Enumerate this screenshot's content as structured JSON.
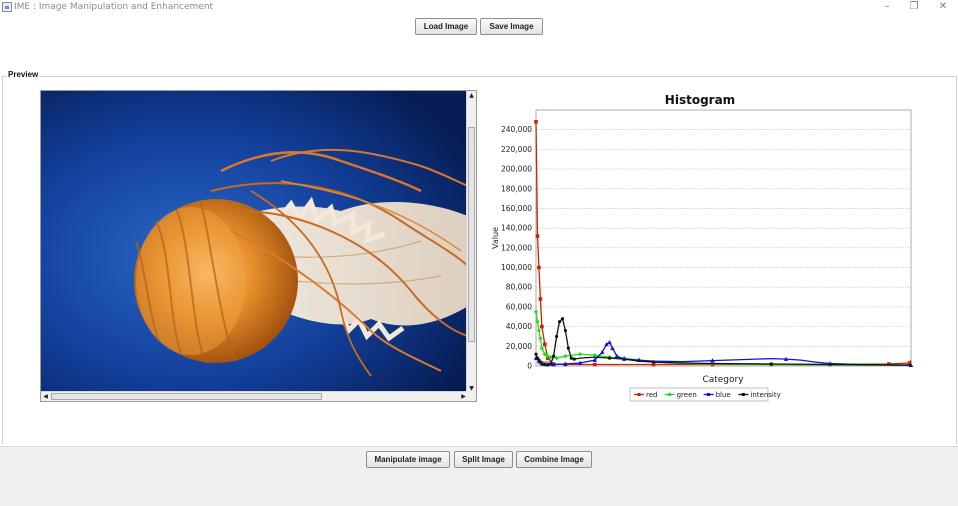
{
  "window": {
    "title": "IME : Image Manipulation and Enhancement",
    "minimize_glyph": "–",
    "restore_glyph": "❐",
    "close_glyph": "✕"
  },
  "toolbar": {
    "load_label": "Load Image",
    "save_label": "Save Image"
  },
  "preview": {
    "label": "Preview",
    "image_subject": "jellyfish on deep blue background"
  },
  "bottom_toolbar": {
    "manipulate_label": "Manipulate image",
    "split_label": "Split Image",
    "combine_label": "Combine Image"
  },
  "icons": {
    "app": "java-app-icon",
    "scroll_up": "chevron-up-icon",
    "scroll_down": "chevron-down-icon",
    "scroll_left": "chevron-left-icon",
    "scroll_right": "chevron-right-icon"
  },
  "colors": {
    "red": "#cc2200",
    "green": "#22dd22",
    "blue": "#1111dd",
    "intensity": "#111111",
    "sea_light": "#1e56b8",
    "sea_dark": "#061c52"
  },
  "chart_data": {
    "type": "line",
    "title": "Histogram",
    "xlabel": "Category",
    "ylabel": "Value",
    "x_range": [
      0,
      255
    ],
    "ylim": [
      0,
      260000
    ],
    "y_ticks": [
      0,
      20000,
      40000,
      60000,
      80000,
      100000,
      120000,
      140000,
      160000,
      180000,
      200000,
      220000,
      240000
    ],
    "y_tick_labels": [
      "0",
      "20,000",
      "40,000",
      "60,000",
      "80,000",
      "100,000",
      "120,000",
      "140,000",
      "160,000",
      "180,000",
      "200,000",
      "220,000",
      "240,000"
    ],
    "grid": true,
    "legend_position": "bottom",
    "series": [
      {
        "name": "red",
        "color": "#cc2200",
        "marker": "square",
        "x": [
          0,
          1,
          2,
          3,
          4,
          6,
          8,
          12,
          20,
          40,
          80,
          120,
          160,
          200,
          240,
          254,
          255
        ],
        "y": [
          248000,
          132000,
          100000,
          68000,
          40000,
          22000,
          8000,
          2000,
          1500,
          1500,
          1500,
          1500,
          1500,
          1500,
          2000,
          3000,
          6000
        ]
      },
      {
        "name": "green",
        "color": "#22dd22",
        "marker": "diamond",
        "x": [
          0,
          1,
          2,
          3,
          4,
          6,
          8,
          10,
          14,
          20,
          30,
          40,
          50,
          60,
          70,
          80,
          100,
          120,
          160,
          200,
          255
        ],
        "y": [
          55000,
          45000,
          36000,
          28000,
          18000,
          12000,
          10000,
          9000,
          8000,
          10000,
          12000,
          11000,
          9000,
          8000,
          6000,
          4000,
          2500,
          2000,
          1500,
          1000,
          500
        ]
      },
      {
        "name": "blue",
        "color": "#1111dd",
        "marker": "triangle",
        "x": [
          0,
          2,
          4,
          6,
          8,
          12,
          20,
          30,
          40,
          45,
          48,
          50,
          52,
          55,
          60,
          70,
          80,
          100,
          120,
          140,
          160,
          170,
          180,
          190,
          200,
          220,
          240,
          255
        ],
        "y": [
          8000,
          5000,
          3000,
          2000,
          1500,
          1500,
          2000,
          3000,
          6000,
          14000,
          22000,
          24000,
          18000,
          10000,
          7000,
          6000,
          5000,
          4500,
          5500,
          6500,
          7500,
          7000,
          6000,
          4000,
          2500,
          1500,
          1000,
          800
        ]
      },
      {
        "name": "intensity",
        "color": "#111111",
        "marker": "cross",
        "x": [
          0,
          1,
          2,
          3,
          4,
          6,
          8,
          10,
          12,
          14,
          16,
          18,
          20,
          22,
          24,
          26,
          30,
          40,
          50,
          60,
          70,
          80,
          100,
          120,
          160,
          200,
          255
        ],
        "y": [
          12000,
          8000,
          6000,
          4000,
          2000,
          1500,
          1500,
          2000,
          10000,
          30000,
          45000,
          48000,
          36000,
          18000,
          8000,
          7000,
          8000,
          9000,
          8000,
          7000,
          5000,
          4000,
          3000,
          2500,
          2000,
          1500,
          1000
        ]
      }
    ]
  }
}
